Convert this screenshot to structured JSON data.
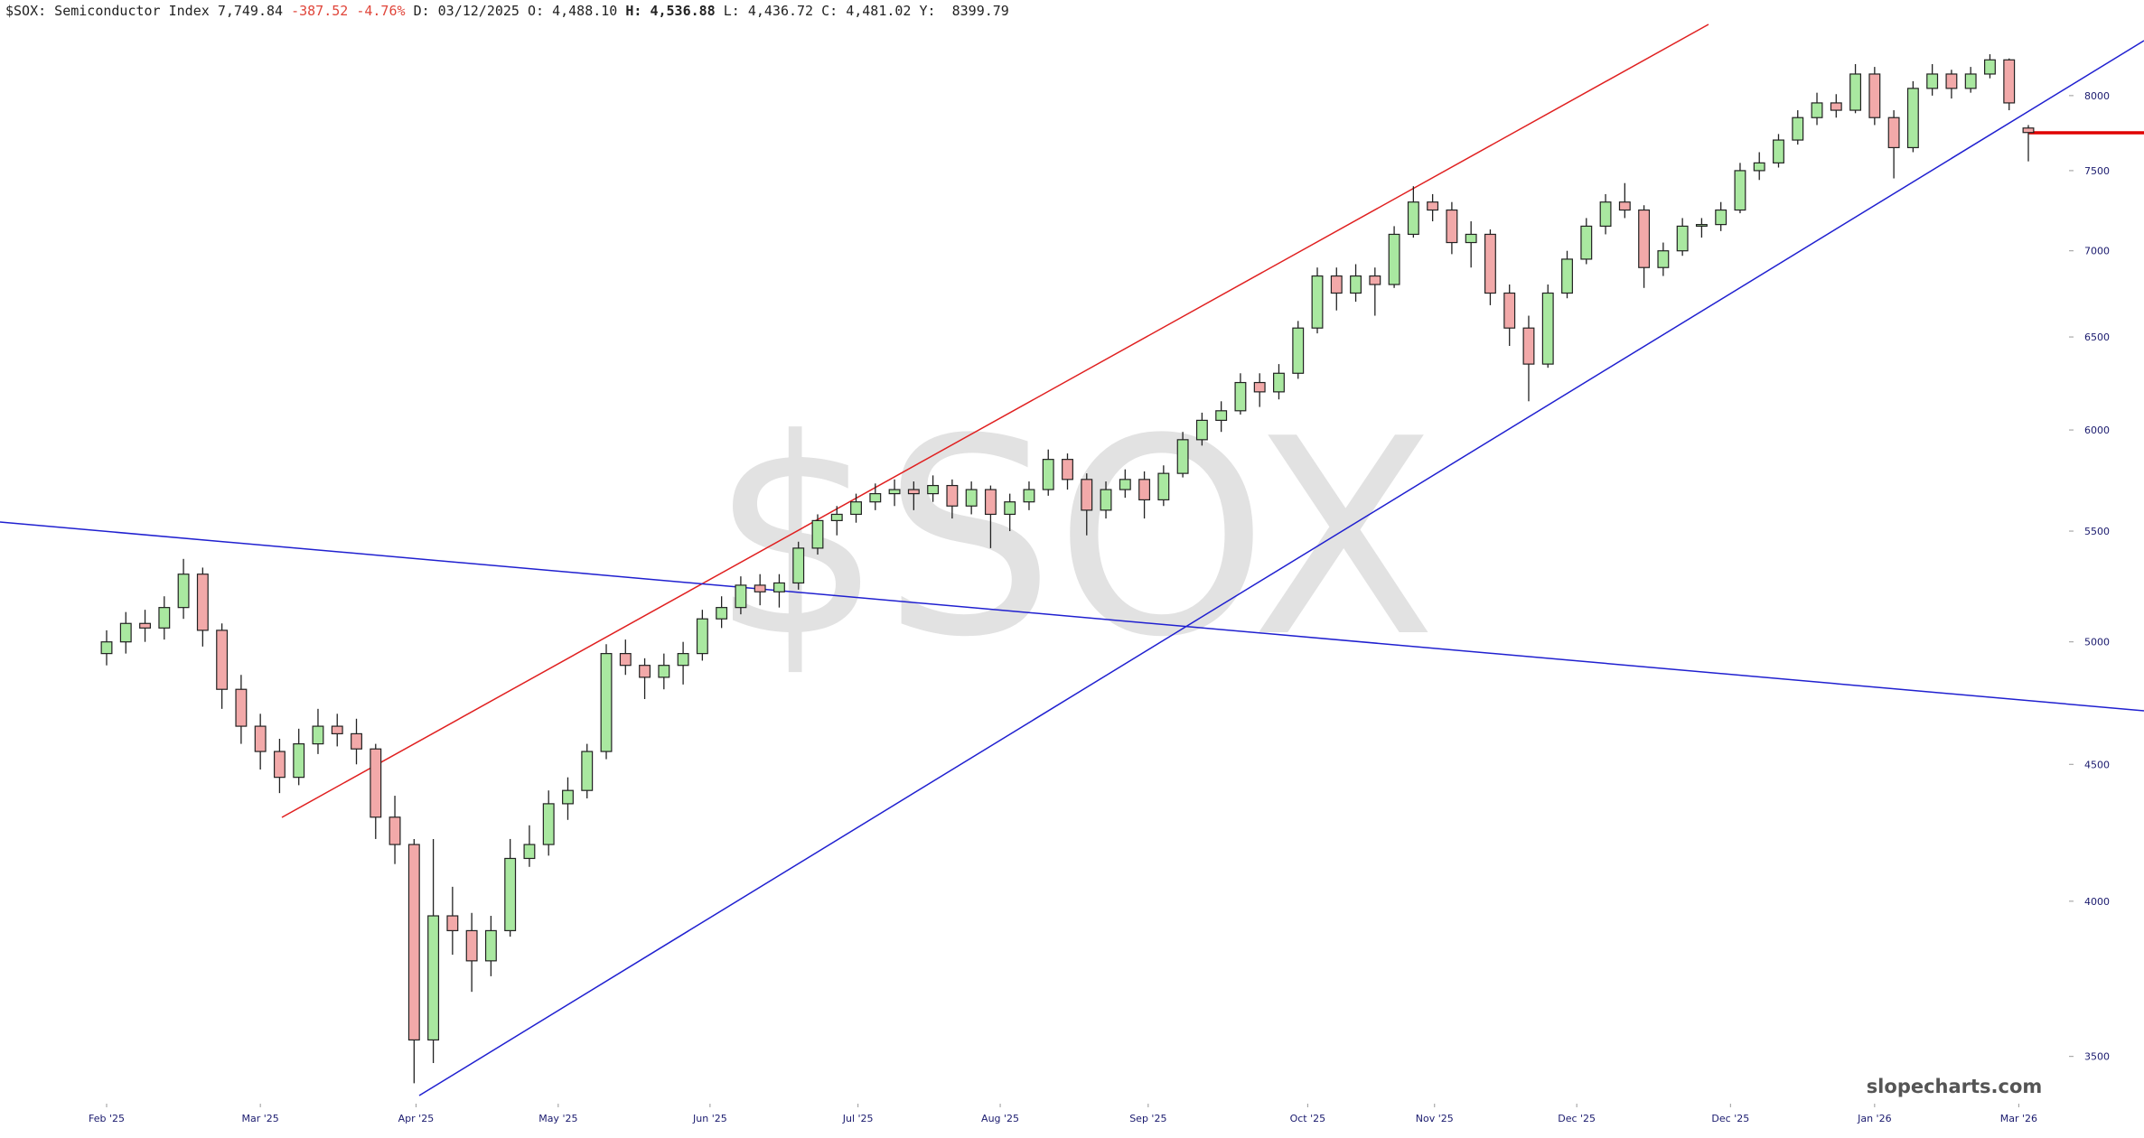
{
  "chart_data": {
    "type": "candlestick",
    "title": "$SOX: Semiconductor Index",
    "last": "7,749.84",
    "change": "-387.52",
    "change_pct": "-4.76%",
    "date": "D: 03/12/2025",
    "o_label": "O: 4,488.10",
    "h_label": "H: 4,536.88",
    "l_label": "L: 4,436.72",
    "c_label": "C: 4,481.02",
    "y_label": "Y:  8399.79",
    "watermark": "$SOX",
    "credit": "slopecharts.com",
    "up_color": "#a9e8a0",
    "down_color": "#f2a9a9",
    "log_scale": true,
    "ylim": [
      3371,
      8686
    ],
    "yticks": [
      3500,
      4000,
      4500,
      5000,
      5500,
      6000,
      6500,
      7000,
      7500,
      8000
    ],
    "xticks": [
      {
        "value": 0,
        "label": "Feb '25"
      },
      {
        "value": 8,
        "label": "Mar '25"
      },
      {
        "value": 16.1,
        "label": "Apr '25"
      },
      {
        "value": 23.5,
        "label": "May '25"
      },
      {
        "value": 31.4,
        "label": "Jun '25"
      },
      {
        "value": 39.1,
        "label": "Jul '25"
      },
      {
        "value": 46.5,
        "label": "Aug '25"
      },
      {
        "value": 54.2,
        "label": "Sep '25"
      },
      {
        "value": 62.5,
        "label": "Oct '25"
      },
      {
        "value": 69.1,
        "label": "Nov '25"
      },
      {
        "value": 76.5,
        "label": "Dec '25"
      },
      {
        "value": 84.5,
        "label": "Dec '25"
      },
      {
        "value": 92,
        "label": "Jan '26"
      },
      {
        "value": 99.5,
        "label": "Mar '26"
      }
    ],
    "open": [
      4950,
      5000,
      5080,
      5060,
      5150,
      5300,
      5050,
      4800,
      4650,
      4550,
      4450,
      4580,
      4650,
      4620,
      4560,
      4300,
      4200,
      3550,
      3950,
      3900,
      3800,
      3900,
      4150,
      4200,
      4350,
      4400,
      4550,
      4950,
      4900,
      4850,
      4900,
      4950,
      5100,
      5150,
      5250,
      5220,
      5260,
      5420,
      5550,
      5580,
      5640,
      5680,
      5700,
      5680,
      5720,
      5620,
      5700,
      5580,
      5640,
      5700,
      5850,
      5750,
      5600,
      5700,
      5750,
      5650,
      5780,
      5950,
      6050,
      6100,
      6250,
      6200,
      6300,
      6550,
      6850,
      6750,
      6850,
      6800,
      7100,
      7300,
      7250,
      7050,
      7100,
      6750,
      6550,
      6350,
      6750,
      6950,
      7150,
      7300,
      7250,
      6900,
      7000,
      7150,
      7160,
      7250,
      7500,
      7550,
      7700,
      7850,
      7950,
      7900,
      8150,
      7850,
      7650,
      8050,
      8150,
      8050,
      8150,
      8250,
      7780
    ],
    "high": [
      5050,
      5130,
      5140,
      5200,
      5370,
      5330,
      5080,
      4860,
      4700,
      4600,
      4640,
      4720,
      4700,
      4680,
      4580,
      4380,
      4220,
      4220,
      4050,
      3960,
      3950,
      4220,
      4270,
      4400,
      4450,
      4580,
      4990,
      5010,
      4930,
      4950,
      5000,
      5140,
      5200,
      5290,
      5300,
      5300,
      5450,
      5580,
      5620,
      5680,
      5730,
      5750,
      5740,
      5770,
      5750,
      5740,
      5720,
      5680,
      5740,
      5900,
      5880,
      5780,
      5740,
      5800,
      5790,
      5820,
      5990,
      6090,
      6150,
      6300,
      6300,
      6350,
      6590,
      6900,
      6900,
      6920,
      6900,
      7150,
      7400,
      7350,
      7300,
      7180,
      7130,
      6800,
      6620,
      6800,
      7000,
      7200,
      7350,
      7420,
      7280,
      7050,
      7200,
      7200,
      7300,
      7550,
      7620,
      7740,
      7900,
      8020,
      8010,
      8220,
      8200,
      7900,
      8100,
      8220,
      8180,
      8200,
      8290,
      8260,
      7800
    ],
    "low": [
      4900,
      4950,
      5000,
      5010,
      5100,
      4980,
      4720,
      4580,
      4480,
      4390,
      4420,
      4540,
      4570,
      4500,
      4220,
      4130,
      3420,
      3480,
      3820,
      3700,
      3750,
      3880,
      4120,
      4160,
      4290,
      4370,
      4520,
      4860,
      4760,
      4800,
      4820,
      4920,
      5060,
      5120,
      5160,
      5150,
      5230,
      5390,
      5480,
      5540,
      5600,
      5620,
      5600,
      5640,
      5560,
      5580,
      5420,
      5500,
      5600,
      5670,
      5700,
      5480,
      5560,
      5660,
      5560,
      5620,
      5760,
      5920,
      5990,
      6080,
      6120,
      6160,
      6270,
      6520,
      6650,
      6700,
      6620,
      6780,
      7080,
      7180,
      6980,
      6900,
      6680,
      6450,
      6150,
      6330,
      6720,
      6920,
      7100,
      7200,
      6780,
      6850,
      6970,
      7080,
      7120,
      7230,
      7440,
      7520,
      7670,
      7800,
      7850,
      7880,
      7800,
      7450,
      7620,
      8000,
      7980,
      8020,
      8120,
      7900,
      7560
    ],
    "close": [
      5000,
      5080,
      5060,
      5150,
      5300,
      5050,
      4800,
      4650,
      4550,
      4450,
      4580,
      4650,
      4620,
      4560,
      4300,
      4200,
      3550,
      3950,
      3900,
      3800,
      3900,
      4150,
      4200,
      4350,
      4400,
      4550,
      4950,
      4900,
      4850,
      4900,
      4950,
      5100,
      5150,
      5250,
      5220,
      5260,
      5420,
      5550,
      5580,
      5640,
      5680,
      5700,
      5680,
      5720,
      5620,
      5700,
      5580,
      5640,
      5700,
      5850,
      5750,
      5600,
      5700,
      5750,
      5650,
      5780,
      5950,
      6050,
      6100,
      6250,
      6200,
      6300,
      6550,
      6850,
      6750,
      6850,
      6800,
      7100,
      7300,
      7250,
      7050,
      7100,
      6750,
      6550,
      6350,
      6750,
      6950,
      7150,
      7300,
      7250,
      6900,
      7000,
      7150,
      7160,
      7250,
      7500,
      7550,
      7700,
      7850,
      7950,
      7900,
      8150,
      7850,
      7650,
      8050,
      8150,
      8050,
      8150,
      8250,
      7950,
      7750
    ]
  }
}
